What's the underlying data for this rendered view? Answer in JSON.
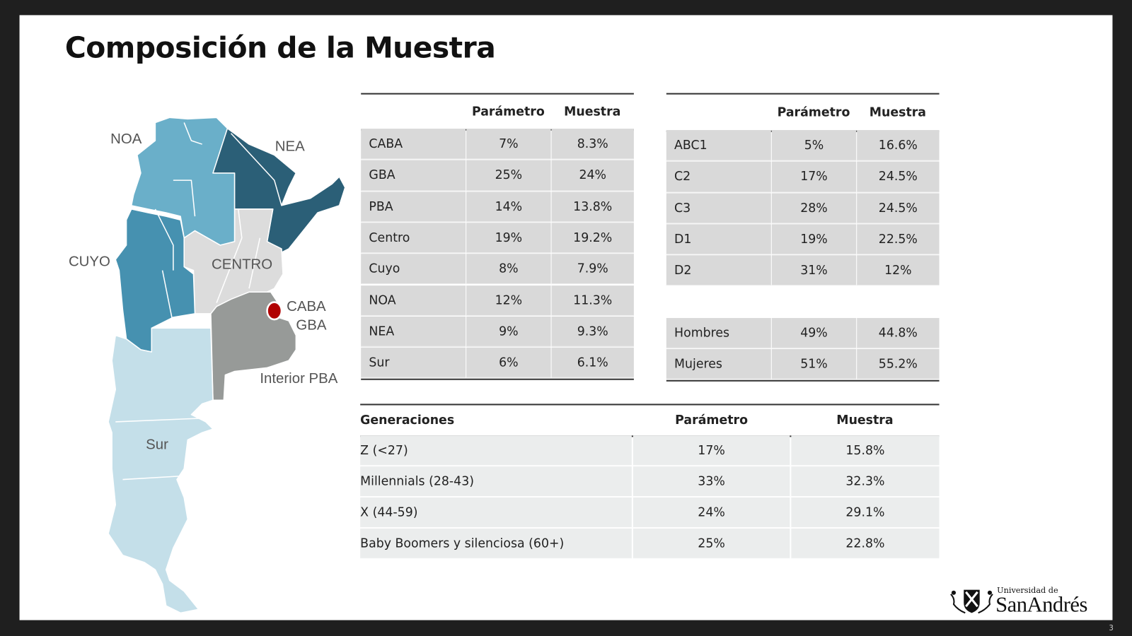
{
  "title": "Composición de la Muestra",
  "map": {
    "labels": {
      "noa": "NOA",
      "nea": "NEA",
      "cuyo": "CUYO",
      "centro": "CENTRO",
      "caba": "CABA",
      "gba": "GBA",
      "interior_pba": "Interior PBA",
      "sur": "Sur"
    },
    "colors": {
      "noa": "#6aafc9",
      "nea": "#2b5f77",
      "cuyo": "#4691b0",
      "centro": "#dcdcdc",
      "interior_pba": "#979a98",
      "sur": "#c4dfe9",
      "caba_marker": "#b00000"
    }
  },
  "regions_table": {
    "headers": [
      "",
      "Parámetro",
      "Muestra"
    ],
    "rows": [
      [
        "CABA",
        "7%",
        "8.3%"
      ],
      [
        "GBA",
        "25%",
        "24%"
      ],
      [
        "PBA",
        "14%",
        "13.8%"
      ],
      [
        "Centro",
        "19%",
        "19.2%"
      ],
      [
        "Cuyo",
        "8%",
        "7.9%"
      ],
      [
        "NOA",
        "12%",
        "11.3%"
      ],
      [
        "NEA",
        "9%",
        "9.3%"
      ],
      [
        "Sur",
        "6%",
        "6.1%"
      ]
    ]
  },
  "nse_table": {
    "headers": [
      "",
      "Parámetro",
      "Muestra"
    ],
    "rows": [
      [
        "ABC1",
        "5%",
        "16.6%"
      ],
      [
        "C2",
        "17%",
        "24.5%"
      ],
      [
        "C3",
        "28%",
        "24.5%"
      ],
      [
        "D1",
        "19%",
        "22.5%"
      ],
      [
        "D2",
        "31%",
        "12%"
      ]
    ],
    "gender_rows": [
      [
        "Hombres",
        "49%",
        "44.8%"
      ],
      [
        "Mujeres",
        "51%",
        "55.2%"
      ]
    ]
  },
  "generations_table": {
    "headers": [
      "Generaciones",
      "Parámetro",
      "Muestra"
    ],
    "rows": [
      [
        "Z (<27)",
        "17%",
        "15.8%"
      ],
      [
        "Millennials (28-43)",
        "33%",
        "32.3%"
      ],
      [
        "X (44-59)",
        "24%",
        "29.1%"
      ],
      [
        "Baby Boomers y silenciosa (60+)",
        "25%",
        "22.8%"
      ]
    ]
  },
  "logo": {
    "line1": "Universidad de",
    "line2": "SanAndrés"
  },
  "page_number": "3"
}
